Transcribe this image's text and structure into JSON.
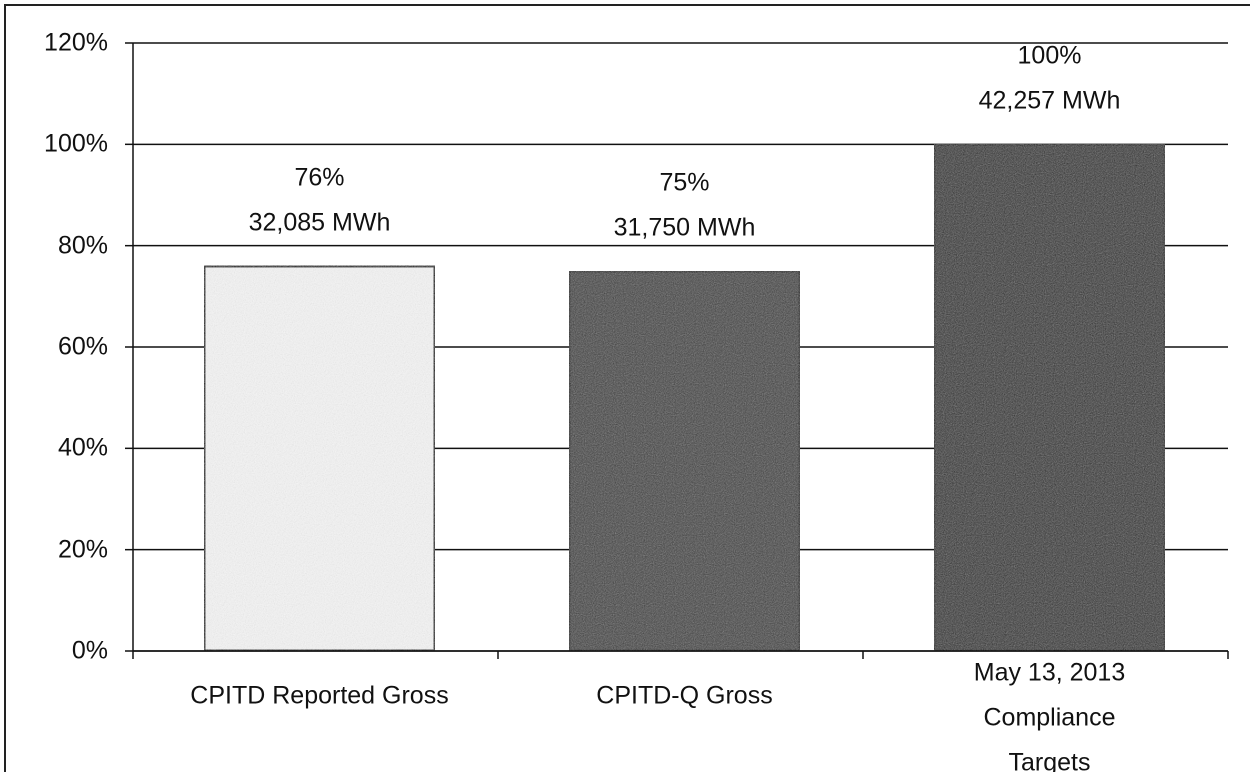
{
  "chart_data": {
    "type": "bar",
    "categories": [
      "CPITD Reported Gross",
      "CPITD-Q Gross",
      "May 13, 2013\nCompliance Targets"
    ],
    "values": [
      76,
      75,
      100
    ],
    "value_labels": [
      "76%",
      "75%",
      "100%"
    ],
    "energy_labels": [
      "32,085 MWh",
      "31,750 MWh",
      "42,257 MWh"
    ],
    "colors": [
      "#f6f6f6",
      "#3c3c3c",
      "#2c2c2c"
    ],
    "ylim": [
      0,
      120
    ],
    "yticks": [
      {
        "value": 0,
        "label": "0%"
      },
      {
        "value": 20,
        "label": "20%"
      },
      {
        "value": 40,
        "label": "40%"
      },
      {
        "value": 60,
        "label": "60%"
      },
      {
        "value": 80,
        "label": "80%"
      },
      {
        "value": 100,
        "label": "100%"
      },
      {
        "value": 120,
        "label": "120%"
      }
    ],
    "grid": true
  }
}
